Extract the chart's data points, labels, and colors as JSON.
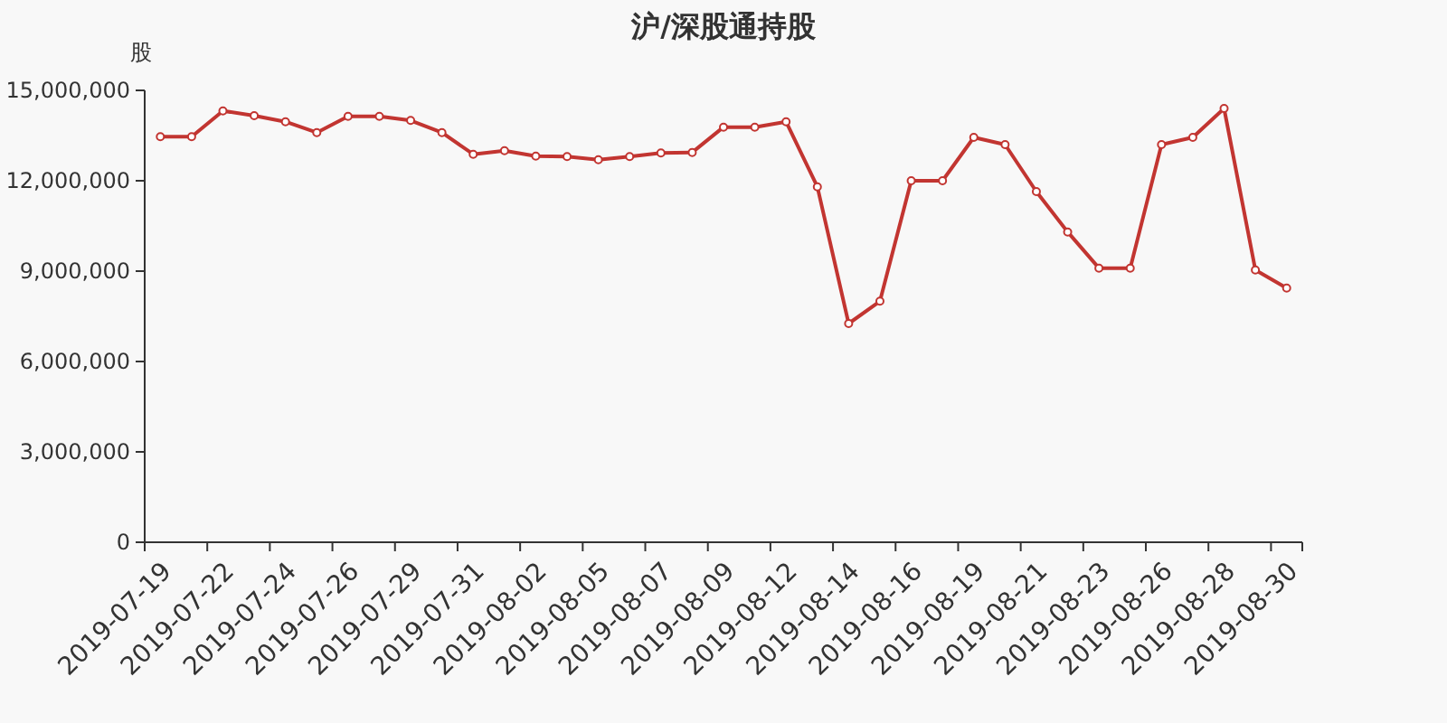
{
  "chart_data": {
    "type": "line",
    "title": "沪/深股通持股",
    "ylabel": "股",
    "categories": [
      "2019-07-19",
      null,
      "2019-07-22",
      null,
      "2019-07-24",
      null,
      "2019-07-26",
      null,
      "2019-07-29",
      null,
      "2019-07-31",
      null,
      "2019-08-02",
      null,
      "2019-08-05",
      null,
      "2019-08-07",
      null,
      "2019-08-09",
      null,
      "2019-08-12",
      null,
      "2019-08-14",
      null,
      "2019-08-16",
      null,
      "2019-08-19",
      null,
      "2019-08-21",
      null,
      "2019-08-23",
      null,
      "2019-08-26",
      null,
      "2019-08-28",
      null,
      "2019-08-30"
    ],
    "series": [
      {
        "color": "#c23531",
        "values": [
          13460000,
          13460000,
          14320000,
          14160000,
          13960000,
          13600000,
          14140000,
          14140000,
          14000000,
          13600000,
          12880000,
          13000000,
          12820000,
          12800000,
          12700000,
          12800000,
          12920000,
          12940000,
          13780000,
          13780000,
          13960000,
          11800000,
          7260000,
          8000000,
          12000000,
          12000000,
          13440000,
          13200000,
          11640000,
          10300000,
          9100000,
          9100000,
          13200000,
          13440000,
          14400000,
          9040000,
          8440000
        ]
      }
    ],
    "ylim": [
      0,
      15000000
    ],
    "yticks": [
      {
        "value": 0,
        "label": "0"
      },
      {
        "value": 3000000,
        "label": "3,000,000"
      },
      {
        "value": 6000000,
        "label": "6,000,000"
      },
      {
        "value": 9000000,
        "label": "9,000,000"
      },
      {
        "value": 12000000,
        "label": "12,000,000"
      },
      {
        "value": 15000000,
        "label": "15,000,000"
      }
    ],
    "grid": false,
    "marker": "circle",
    "line_style": "solid"
  }
}
